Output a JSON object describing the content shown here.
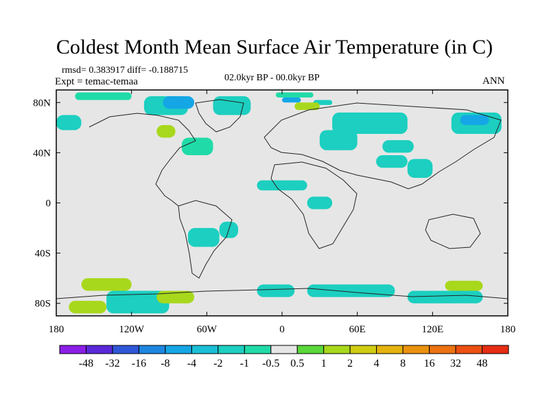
{
  "chart_data": {
    "type": "heatmap",
    "title": "Coldest Month Mean Surface Air Temperature (in C)",
    "stats_line": "rmsd= 0.383917 diff= -0.188715",
    "experiment_line": "Expt = temac-temaa",
    "period_label": "02.0kyr BP - 00.0kyr BP",
    "season_label": "ANN",
    "x_axis": {
      "range": [
        -180,
        180
      ],
      "ticks": [
        -180,
        -120,
        -60,
        0,
        60,
        120,
        180
      ],
      "tick_labels": [
        "180",
        "120W",
        "60W",
        "0",
        "60E",
        "120E",
        "180"
      ]
    },
    "y_axis": {
      "range": [
        -90,
        90
      ],
      "ticks": [
        80,
        40,
        0,
        -40,
        -80
      ],
      "tick_labels": [
        "80N",
        "40N",
        "0",
        "40S",
        "80S"
      ]
    },
    "colorbar": {
      "bins": [
        {
          "lower": null,
          "upper": -48,
          "color": "#8c1ee8"
        },
        {
          "lower": -48,
          "upper": -32,
          "color": "#5a28d8"
        },
        {
          "lower": -32,
          "upper": -16,
          "color": "#2f57d8"
        },
        {
          "lower": -16,
          "upper": -8,
          "color": "#1d86e0"
        },
        {
          "lower": -8,
          "upper": -4,
          "color": "#15a6e6"
        },
        {
          "lower": -4,
          "upper": -2,
          "color": "#19bfd6"
        },
        {
          "lower": -2,
          "upper": -1,
          "color": "#1ccfc0"
        },
        {
          "lower": -1,
          "upper": -0.5,
          "color": "#20dba8"
        },
        {
          "lower": -0.5,
          "upper": 0.5,
          "color": "#e6e6e6"
        },
        {
          "lower": 0.5,
          "upper": 1,
          "color": "#5ad83a"
        },
        {
          "lower": 1,
          "upper": 2,
          "color": "#a8d81c"
        },
        {
          "lower": 2,
          "upper": 4,
          "color": "#d0cc12"
        },
        {
          "lower": 4,
          "upper": 8,
          "color": "#e5b30e"
        },
        {
          "lower": 8,
          "upper": 16,
          "color": "#ea920f"
        },
        {
          "lower": 16,
          "upper": 32,
          "color": "#ec7212"
        },
        {
          "lower": 32,
          "upper": 48,
          "color": "#ec5012"
        },
        {
          "lower": 48,
          "upper": null,
          "color": "#e62d14"
        }
      ],
      "labels": [
        "-48",
        "-32",
        "-16",
        "-8",
        "-4",
        "-2",
        "-1",
        "-0.5",
        "0.5",
        "1",
        "2",
        "4",
        "8",
        "16",
        "32",
        "48"
      ]
    },
    "background_value_range": [
      -0.5,
      0.5
    ],
    "anomaly_regions": [
      {
        "lon": [
          -180,
          -160
        ],
        "lat": [
          58,
          70
        ],
        "value": -1.5
      },
      {
        "lon": [
          -165,
          -120
        ],
        "lat": [
          82,
          88
        ],
        "value": -0.8
      },
      {
        "lon": [
          -110,
          -75
        ],
        "lat": [
          70,
          85
        ],
        "value": -1.5
      },
      {
        "lon": [
          -95,
          -70
        ],
        "lat": [
          75,
          85
        ],
        "value": -5
      },
      {
        "lon": [
          -55,
          -25
        ],
        "lat": [
          70,
          85
        ],
        "value": -1.5
      },
      {
        "lon": [
          -100,
          -85
        ],
        "lat": [
          52,
          62
        ],
        "value": 1.5
      },
      {
        "lon": [
          -80,
          -55
        ],
        "lat": [
          38,
          52
        ],
        "value": -0.8
      },
      {
        "lon": [
          -5,
          25
        ],
        "lat": [
          84,
          88
        ],
        "value": -0.8
      },
      {
        "lon": [
          0,
          15
        ],
        "lat": [
          80,
          84
        ],
        "value": -5
      },
      {
        "lon": [
          25,
          40
        ],
        "lat": [
          78,
          82
        ],
        "value": -1.5
      },
      {
        "lon": [
          10,
          30
        ],
        "lat": [
          74,
          80
        ],
        "value": 1.5
      },
      {
        "lon": [
          40,
          100
        ],
        "lat": [
          55,
          72
        ],
        "value": -1.5
      },
      {
        "lon": [
          30,
          60
        ],
        "lat": [
          42,
          58
        ],
        "value": -1.5
      },
      {
        "lon": [
          80,
          105
        ],
        "lat": [
          40,
          50
        ],
        "value": -1.5
      },
      {
        "lon": [
          135,
          175
        ],
        "lat": [
          55,
          72
        ],
        "value": -1.5
      },
      {
        "lon": [
          142,
          165
        ],
        "lat": [
          62,
          70
        ],
        "value": -5
      },
      {
        "lon": [
          100,
          120
        ],
        "lat": [
          20,
          35
        ],
        "value": -1.5
      },
      {
        "lon": [
          75,
          100
        ],
        "lat": [
          28,
          38
        ],
        "value": -1.5
      },
      {
        "lon": [
          -20,
          20
        ],
        "lat": [
          10,
          18
        ],
        "value": -1.5
      },
      {
        "lon": [
          -50,
          -35
        ],
        "lat": [
          -28,
          -15
        ],
        "value": -1.5
      },
      {
        "lon": [
          -75,
          -50
        ],
        "lat": [
          -35,
          -20
        ],
        "value": -1.5
      },
      {
        "lon": [
          20,
          40
        ],
        "lat": [
          -5,
          5
        ],
        "value": -1.5
      },
      {
        "lon": [
          -160,
          -120
        ],
        "lat": [
          -70,
          -60
        ],
        "value": 1.5
      },
      {
        "lon": [
          -170,
          -140
        ],
        "lat": [
          -88,
          -78
        ],
        "value": 1.5
      },
      {
        "lon": [
          -140,
          -90
        ],
        "lat": [
          -88,
          -70
        ],
        "value": -1.5
      },
      {
        "lon": [
          -100,
          -70
        ],
        "lat": [
          -80,
          -70
        ],
        "value": 1.5
      },
      {
        "lon": [
          -20,
          10
        ],
        "lat": [
          -75,
          -65
        ],
        "value": -1.5
      },
      {
        "lon": [
          20,
          90
        ],
        "lat": [
          -75,
          -65
        ],
        "value": -1.5
      },
      {
        "lon": [
          100,
          160
        ],
        "lat": [
          -80,
          -70
        ],
        "value": -1.5
      },
      {
        "lon": [
          130,
          160
        ],
        "lat": [
          -70,
          -62
        ],
        "value": 1.5
      }
    ]
  }
}
